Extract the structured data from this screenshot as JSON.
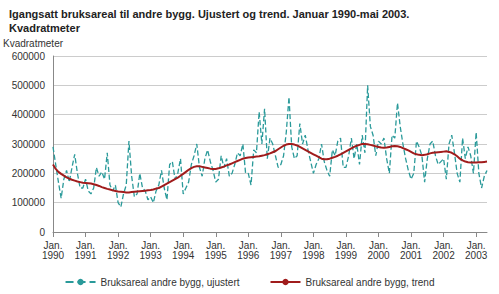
{
  "chart_data": {
    "type": "line",
    "title": "Igangsatt bruksareal til andre bygg. Ujustert og trend. Januar 1990-mai 2003. Kvadratmeter",
    "y_label": "Kvadratmeter",
    "categories": [
      "Jan. 1990",
      null,
      null,
      null,
      null,
      null,
      null,
      null,
      null,
      null,
      null,
      null,
      "Jan. 1991",
      null,
      null,
      null,
      null,
      null,
      null,
      null,
      null,
      null,
      null,
      null,
      "Jan. 1992",
      null,
      null,
      null,
      null,
      null,
      null,
      null,
      null,
      null,
      null,
      null,
      "Jan. 1993",
      null,
      null,
      null,
      null,
      null,
      null,
      null,
      null,
      null,
      null,
      null,
      "Jan. 1994",
      null,
      null,
      null,
      null,
      null,
      null,
      null,
      null,
      null,
      null,
      null,
      "Jan. 1995",
      null,
      null,
      null,
      null,
      null,
      null,
      null,
      null,
      null,
      null,
      null,
      "Jan. 1996",
      null,
      null,
      null,
      null,
      null,
      null,
      null,
      null,
      null,
      null,
      null,
      "Jan. 1997",
      null,
      null,
      null,
      null,
      null,
      null,
      null,
      null,
      null,
      null,
      null,
      "Jan. 1998",
      null,
      null,
      null,
      null,
      null,
      null,
      null,
      null,
      null,
      null,
      null,
      "Jan. 1999",
      null,
      null,
      null,
      null,
      null,
      null,
      null,
      null,
      null,
      null,
      null,
      "Jan. 2000",
      null,
      null,
      null,
      null,
      null,
      null,
      null,
      null,
      null,
      null,
      null,
      "Jan. 2001",
      null,
      null,
      null,
      null,
      null,
      null,
      null,
      null,
      null,
      null,
      null,
      "Jan. 2002",
      null,
      null,
      null,
      null,
      null,
      null,
      null,
      null,
      null,
      null,
      null,
      "Jan. 2003",
      null,
      null,
      null,
      null
    ],
    "series": [
      {
        "name": "Bruksareal andre bygg, ujustert",
        "color": "#2a9a9a",
        "line_style": "dashed",
        "values": [
          290000,
          230000,
          170000,
          115000,
          180000,
          210000,
          170000,
          220000,
          265000,
          200000,
          150000,
          150000,
          180000,
          140000,
          130000,
          150000,
          220000,
          190000,
          205000,
          180000,
          270000,
          160000,
          140000,
          160000,
          100000,
          85000,
          130000,
          160000,
          310000,
          190000,
          120000,
          130000,
          200000,
          150000,
          140000,
          110000,
          120000,
          100000,
          140000,
          160000,
          210000,
          150000,
          110000,
          230000,
          240000,
          180000,
          200000,
          250000,
          130000,
          150000,
          170000,
          230000,
          260000,
          300000,
          220000,
          190000,
          250000,
          280000,
          240000,
          210000,
          170000,
          180000,
          260000,
          220000,
          250000,
          190000,
          200000,
          230000,
          270000,
          260000,
          300000,
          200000,
          200000,
          160000,
          280000,
          270000,
          410000,
          300000,
          420000,
          250000,
          320000,
          300000,
          260000,
          220000,
          230000,
          260000,
          340000,
          460000,
          290000,
          250000,
          260000,
          370000,
          300000,
          330000,
          280000,
          240000,
          200000,
          230000,
          250000,
          300000,
          240000,
          210000,
          190000,
          280000,
          260000,
          310000,
          320000,
          220000,
          220000,
          260000,
          320000,
          250000,
          300000,
          230000,
          330000,
          270000,
          500000,
          360000,
          330000,
          260000,
          310000,
          300000,
          320000,
          250000,
          200000,
          330000,
          320000,
          440000,
          360000,
          300000,
          250000,
          210000,
          180000,
          200000,
          310000,
          290000,
          260000,
          170000,
          250000,
          300000,
          310000,
          260000,
          230000,
          240000,
          250000,
          180000,
          300000,
          330000,
          270000,
          200000,
          170000,
          320000,
          250000,
          290000,
          260000,
          200000,
          340000,
          200000,
          150000,
          190000,
          210000
        ]
      },
      {
        "name": "Bruksareal andre bygg, trend",
        "color": "#a01c1c",
        "line_style": "solid",
        "values": [
          230000,
          215000,
          205000,
          198000,
          192000,
          186000,
          182000,
          178000,
          175000,
          172000,
          170000,
          168000,
          167000,
          166000,
          165000,
          163000,
          160000,
          157000,
          153000,
          150000,
          147000,
          145000,
          142000,
          140000,
          138000,
          137000,
          136000,
          135000,
          135000,
          136000,
          137000,
          138000,
          139000,
          140000,
          141000,
          142000,
          143000,
          145000,
          148000,
          150000,
          155000,
          160000,
          165000,
          170000,
          175000,
          180000,
          185000,
          192000,
          198000,
          205000,
          212000,
          218000,
          222000,
          224000,
          224000,
          222000,
          220000,
          218000,
          216000,
          215000,
          215000,
          217000,
          220000,
          223000,
          227000,
          230000,
          234000,
          238000,
          242000,
          246000,
          250000,
          252000,
          254000,
          255000,
          256000,
          257000,
          258000,
          260000,
          262000,
          265000,
          268000,
          272000,
          276000,
          282000,
          288000,
          294000,
          298000,
          300000,
          300000,
          298000,
          295000,
          290000,
          285000,
          280000,
          275000,
          270000,
          265000,
          260000,
          255000,
          250000,
          248000,
          248000,
          250000,
          253000,
          256000,
          260000,
          265000,
          270000,
          275000,
          280000,
          285000,
          290000,
          294000,
          297000,
          300000,
          300000,
          299000,
          297000,
          295000,
          292000,
          290000,
          288000,
          287000,
          288000,
          290000,
          292000,
          293000,
          292000,
          290000,
          286000,
          282000,
          278000,
          273000,
          268000,
          265000,
          263000,
          262000,
          263000,
          265000,
          268000,
          270000,
          271000,
          272000,
          273000,
          274000,
          275000,
          273000,
          270000,
          265000,
          258000,
          250000,
          244000,
          240000,
          238000,
          237000,
          237000,
          237000,
          238000,
          238000,
          239000,
          240000
        ]
      }
    ],
    "ylim": [
      0,
      600000
    ],
    "yticks": [
      0,
      100000,
      200000,
      300000,
      400000,
      500000,
      600000
    ],
    "grid": true,
    "legend": "bottom"
  }
}
